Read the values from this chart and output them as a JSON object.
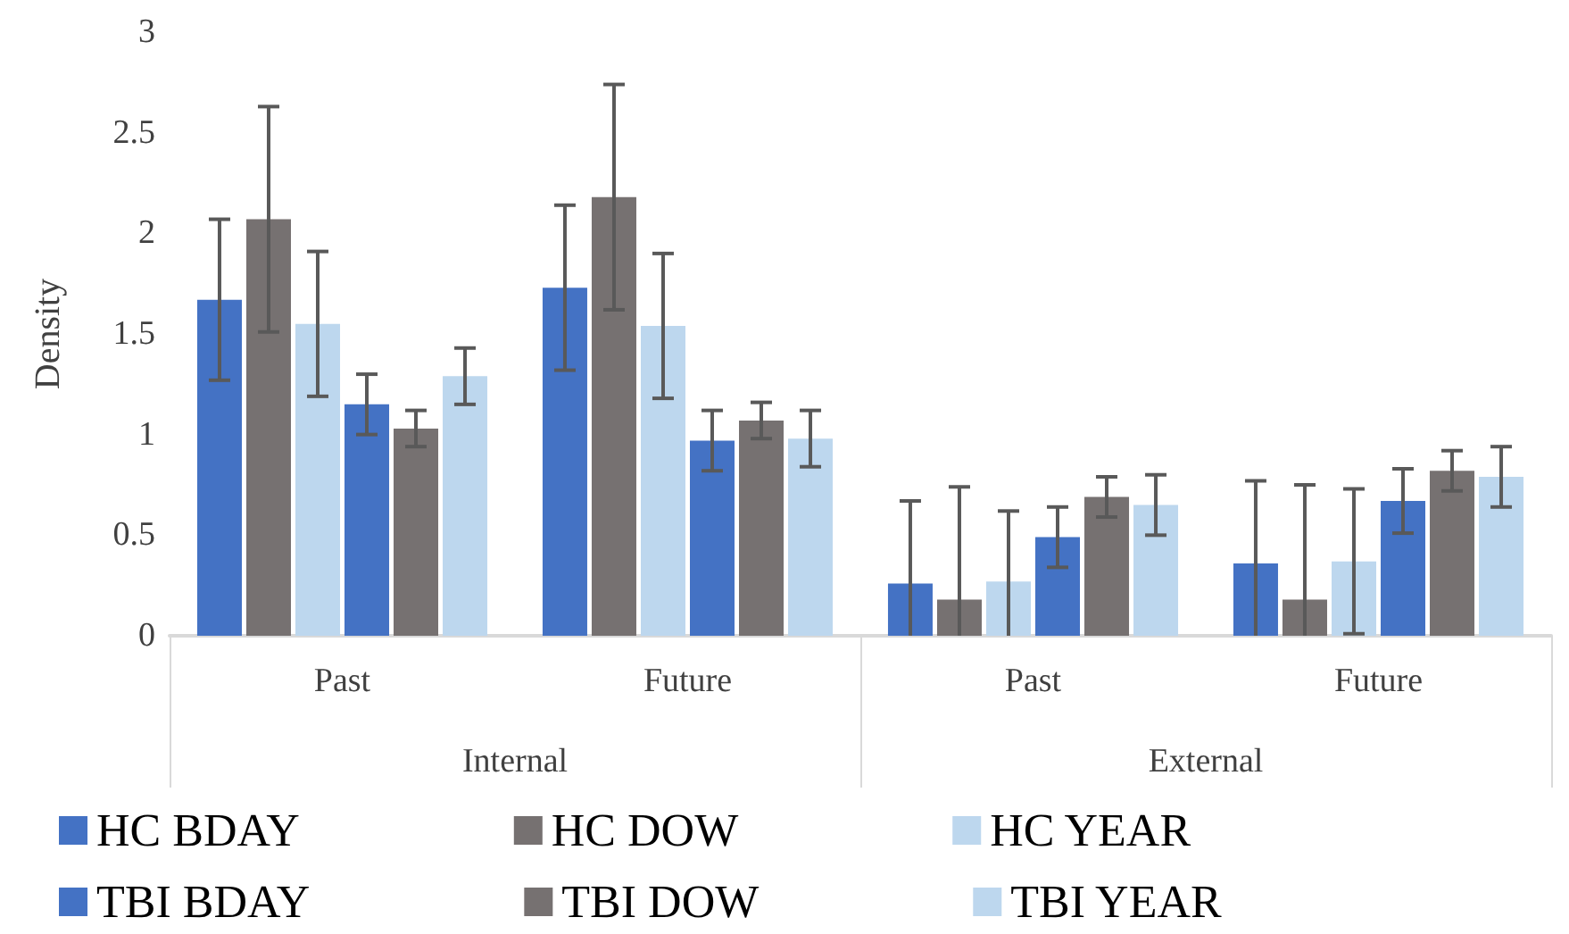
{
  "chart_data": {
    "type": "bar",
    "ylabel": "Density",
    "categories": [
      "Past",
      "Future",
      "Past",
      "Future"
    ],
    "annotations": [
      "Internal",
      "External"
    ],
    "series": [
      {
        "name": "HC BDAY",
        "color": "#4472c4",
        "values": [
          1.67,
          1.73,
          0.26,
          0.36
        ],
        "errors": [
          0.4,
          0.41,
          [
            0,
            0.67
          ],
          [
            0,
            0.77
          ]
        ]
      },
      {
        "name": "HC DOW",
        "color": "#767171",
        "values": [
          2.07,
          2.18,
          0.18,
          0.18
        ],
        "errors": [
          0.56,
          0.56,
          [
            0,
            0.74
          ],
          [
            0,
            0.75
          ]
        ]
      },
      {
        "name": "HC YEAR",
        "color": "#bdd7ee",
        "values": [
          1.55,
          1.54,
          0.27,
          0.37
        ],
        "errors": [
          0.36,
          0.36,
          [
            0,
            0.62
          ],
          0.36
        ]
      },
      {
        "name": "TBI BDAY",
        "color": "#4472c4",
        "values": [
          1.15,
          0.97,
          0.49,
          0.67
        ],
        "errors": [
          0.15,
          0.15,
          0.15,
          0.16
        ]
      },
      {
        "name": "TBI DOW",
        "color": "#767171",
        "values": [
          1.03,
          1.07,
          0.69,
          0.82
        ],
        "errors": [
          0.09,
          0.09,
          0.1,
          0.1
        ]
      },
      {
        "name": "TBI YEAR",
        "color": "#bdd7ee",
        "values": [
          1.29,
          0.98,
          0.65,
          0.79
        ],
        "errors": [
          0.14,
          0.14,
          0.15,
          0.15
        ]
      }
    ],
    "ylim": [
      0,
      3
    ],
    "yticks": [
      0,
      0.5,
      1,
      1.5,
      2,
      2.5,
      3
    ],
    "grid": false,
    "legend": "bottom"
  }
}
